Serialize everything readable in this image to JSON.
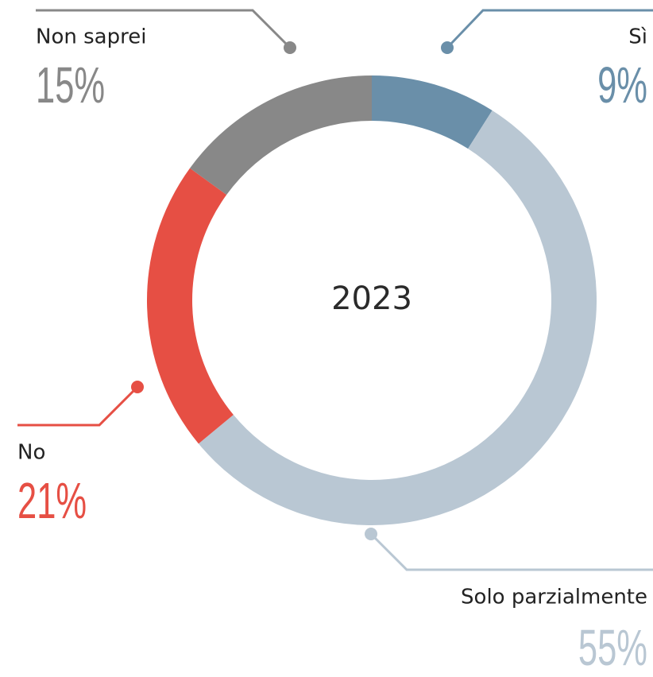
{
  "chart_data": {
    "type": "donut",
    "center_label": "2023",
    "categories": [
      "Sì",
      "Solo parzialmente",
      "No",
      "Non saprei"
    ],
    "values": [
      9,
      55,
      21,
      15
    ],
    "value_labels": [
      "9%",
      "55%",
      "21%",
      "15%"
    ],
    "colors": [
      "#6a8fa9",
      "#b9c7d3",
      "#e64f44",
      "#888888"
    ]
  }
}
